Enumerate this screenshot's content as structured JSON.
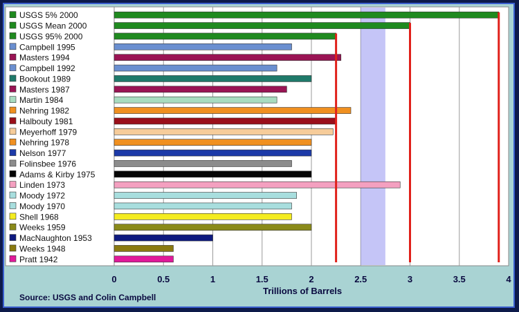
{
  "chart_data": {
    "type": "bar",
    "orientation": "horizontal",
    "xlabel": "Trillions of Barrels",
    "xlim": [
      0,
      4
    ],
    "x_ticks": [
      "0",
      "0.5",
      "1",
      "1.5",
      "2",
      "2.5",
      "3",
      "3.5",
      "4"
    ],
    "grid": true,
    "legend": "left",
    "source": "Source:  USGS and Colin Campbell",
    "shaded_band": [
      2.5,
      2.75
    ],
    "reference_lines": [
      2.25,
      3.0,
      3.9
    ],
    "series": [
      {
        "name": "USGS 5% 2000",
        "value": 3.9,
        "color": "#1f8a1f"
      },
      {
        "name": "USGS Mean 2000",
        "value": 3.0,
        "color": "#1f8a1f"
      },
      {
        "name": "USGS 95% 2000",
        "value": 2.25,
        "color": "#1f8a1f"
      },
      {
        "name": "Campbell 1995",
        "value": 1.8,
        "color": "#6a8fd0"
      },
      {
        "name": "Masters 1994",
        "value": 2.3,
        "color": "#9a1454"
      },
      {
        "name": "Campbell 1992",
        "value": 1.65,
        "color": "#6a8fd0"
      },
      {
        "name": "Bookout 1989",
        "value": 2.0,
        "color": "#1f7a6a"
      },
      {
        "name": "Masters 1987",
        "value": 1.75,
        "color": "#9a1454"
      },
      {
        "name": "Martin 1984",
        "value": 1.65,
        "color": "#a8dcc0"
      },
      {
        "name": "Nehring 1982",
        "value": 2.4,
        "color": "#f09020"
      },
      {
        "name": "Halbouty 1981",
        "value": 2.25,
        "color": "#9a0f1a"
      },
      {
        "name": "Meyerhoff 1979",
        "value": 2.22,
        "color": "#f6cc9a"
      },
      {
        "name": "Nehring 1978",
        "value": 2.0,
        "color": "#f09020"
      },
      {
        "name": "Nelson 1977",
        "value": 2.0,
        "color": "#1c3aa8"
      },
      {
        "name": "Folinsbee 1976",
        "value": 1.8,
        "color": "#8c8c8c"
      },
      {
        "name": "Adams & Kirby 1975",
        "value": 2.0,
        "color": "#050505"
      },
      {
        "name": "Linden 1973",
        "value": 2.9,
        "color": "#f4a0c0"
      },
      {
        "name": "Moody 1972",
        "value": 1.85,
        "color": "#a8dede"
      },
      {
        "name": "Moody 1970",
        "value": 1.8,
        "color": "#a8dede"
      },
      {
        "name": "Shell 1968",
        "value": 1.8,
        "color": "#f4ec20"
      },
      {
        "name": "Weeks 1959",
        "value": 2.0,
        "color": "#8a8a1a"
      },
      {
        "name": "MacNaughton 1953",
        "value": 1.0,
        "color": "#0e1a80"
      },
      {
        "name": "Weeks 1948",
        "value": 0.6,
        "color": "#8a7a10"
      },
      {
        "name": "Pratt 1942",
        "value": 0.6,
        "color": "#e01a9a"
      }
    ]
  }
}
